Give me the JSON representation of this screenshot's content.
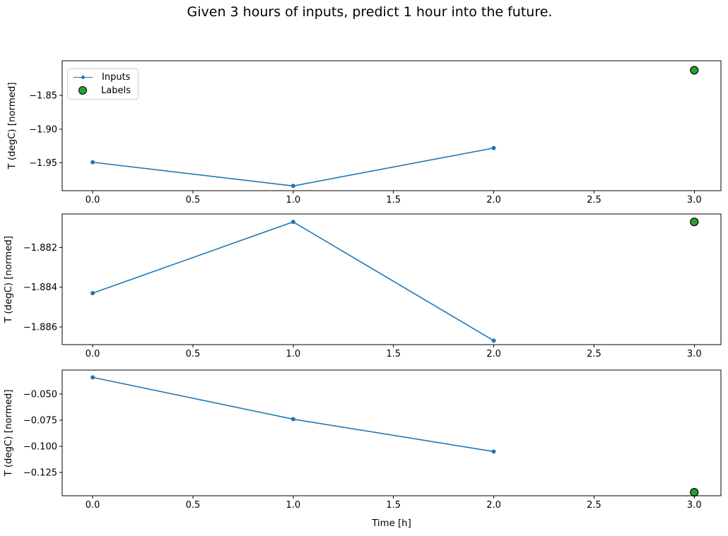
{
  "figure": {
    "background": "#ffffff"
  },
  "chart_data": {
    "type": "line",
    "title": "Given 3 hours of inputs, predict 1 hour into the future.",
    "xlabel": "Time [h]",
    "legend": [
      "Inputs",
      "Labels"
    ],
    "legend_position": "upper-left of first subplot",
    "grid": false,
    "colors": {
      "inputs": "#1f77b4",
      "labels_fill": "#2ca02c",
      "labels_edge": "#000000"
    },
    "x": [
      0.0,
      1.0,
      2.0
    ],
    "label_x": 3.0,
    "xticks": [
      0.0,
      0.5,
      1.0,
      1.5,
      2.0,
      2.5,
      3.0
    ],
    "xtick_labels": [
      "0.0",
      "0.5",
      "1.0",
      "1.5",
      "2.0",
      "2.5",
      "3.0"
    ],
    "xlim": [
      -0.152,
      3.133
    ],
    "subplots": [
      {
        "ylabel": "T (degC) [normed]",
        "series": [
          {
            "name": "Inputs",
            "x": [
              0.0,
              1.0,
              2.0
            ],
            "values": [
              -1.949,
              -1.984,
              -1.928
            ]
          }
        ],
        "inputs": [
          -1.949,
          -1.984,
          -1.928
        ],
        "label": -1.813,
        "yticks": [
          -1.85,
          -1.9,
          -1.95
        ],
        "ytick_labels": [
          "−1.85",
          "−1.90",
          "−1.95"
        ],
        "ylim": [
          -1.991,
          -1.799
        ]
      },
      {
        "ylabel": "T (degC) [normed]",
        "series": [
          {
            "name": "Inputs",
            "x": [
              0.0,
              1.0,
              2.0
            ],
            "values": [
              -1.8843,
              -1.8807,
              -1.8867
            ]
          }
        ],
        "inputs": [
          -1.8843,
          -1.8807,
          -1.8867
        ],
        "label": -1.8807,
        "yticks": [
          -1.882,
          -1.884,
          -1.886
        ],
        "ytick_labels": [
          "−1.882",
          "−1.884",
          "−1.886"
        ],
        "ylim": [
          -1.8869,
          -1.8803
        ]
      },
      {
        "ylabel": "T (degC) [normed]",
        "series": [
          {
            "name": "Inputs",
            "x": [
              0.0,
              1.0,
              2.0
            ],
            "values": [
              -0.034,
              -0.074,
              -0.105
            ]
          }
        ],
        "inputs": [
          -0.034,
          -0.074,
          -0.105
        ],
        "label": -0.144,
        "yticks": [
          -0.05,
          -0.075,
          -0.1,
          -0.125
        ],
        "ytick_labels": [
          "−0.050",
          "−0.075",
          "−0.100",
          "−0.125"
        ],
        "ylim": [
          -0.1473,
          -0.027
        ]
      }
    ]
  }
}
